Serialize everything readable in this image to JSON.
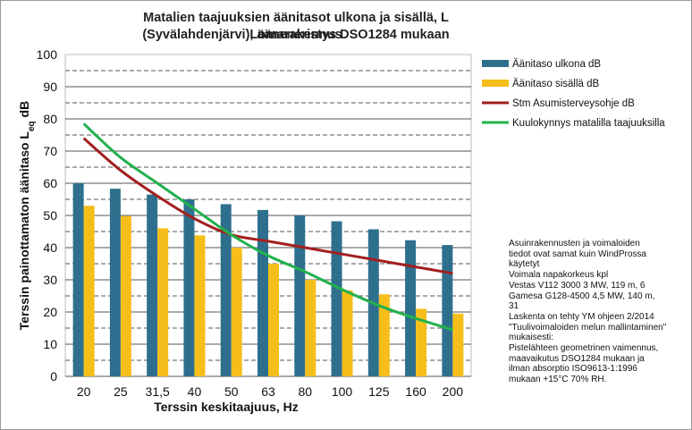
{
  "chart_data": {
    "type": "bar",
    "title_line1": "Matalien taajuuksien äänitasot ulkona ja sisällä, L Lomarakennus",
    "title_line2": "(Syvälahdenjärvi), ääneneristys DSO1284 mukaan",
    "xlabel": "Terssin keskitaajuus, Hz",
    "ylabel": "Terssin painottamaton äänitaso L",
    "ylabel_sub": "eq",
    "ylabel_suffix": " dB",
    "categories": [
      "20",
      "25",
      "31,5",
      "40",
      "50",
      "63",
      "80",
      "100",
      "125",
      "160",
      "200"
    ],
    "ylim": [
      0,
      100
    ],
    "yticks": [
      "0",
      "10",
      "20",
      "30",
      "40",
      "50",
      "60",
      "70",
      "80",
      "90",
      "100"
    ],
    "series": [
      {
        "name": "Äänitaso ulkona dB",
        "kind": "bar",
        "color": "#2e6f8e",
        "values": [
          60,
          58.3,
          56.5,
          55,
          53.5,
          51.7,
          50,
          48.2,
          45.7,
          42.3,
          40.8
        ]
      },
      {
        "name": "Äänitaso sisällä dB",
        "kind": "bar",
        "color": "#f5be1a",
        "values": [
          53,
          49.8,
          46,
          43.8,
          40,
          35,
          30,
          26.7,
          25.5,
          21,
          19.5
        ]
      },
      {
        "name": "Stm Asumisterveysohje dB",
        "kind": "line",
        "color": "#a31f1f",
        "values": [
          74,
          64,
          56,
          49,
          44,
          42,
          40,
          38,
          36,
          34,
          32
        ]
      },
      {
        "name": "Kuulokynnys matalilla taajuuksilla",
        "kind": "line",
        "color": "#22b14c",
        "values": [
          78.5,
          68,
          60,
          52,
          44,
          37.5,
          32.5,
          27,
          22,
          18,
          14.5
        ]
      }
    ],
    "grid": true,
    "legend": "right",
    "annotation": "Asuinrakennusten ja voimaloiden\ntiedot ovat samat kuin WindProssa\nkäytetyt\nVoimala napakorkeus  kpl\nVestas V112 3000   3 MW, 119 m, 6\nGamesa G128-4500   4,5 MW, 140 m,\n31\nLaskenta on tehty YM ohjeen 2/2014\n\"Tuulivoimaloiden melun mallintaminen\"\nmukaisesti:\nPistelähteen geometrinen vaimennus,\nmaavaikutus DSO1284 mukaan ja\nilman absorptio ISO9613-1:1996\nmukaan +15°C 70% RH."
  }
}
